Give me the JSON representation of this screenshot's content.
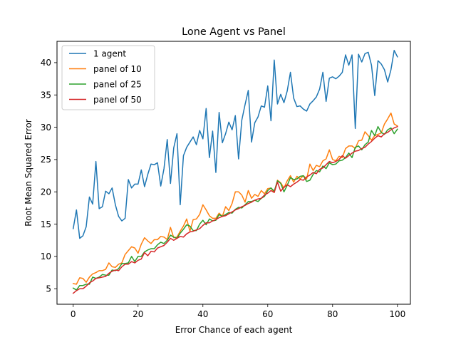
{
  "chart_data": {
    "type": "line",
    "title": "Lone Agent vs Panel",
    "xlabel": "Error Chance of each agent",
    "ylabel": "Root Mean Squared Error",
    "xlim": [
      -5,
      104
    ],
    "ylim": [
      2.6,
      43.3
    ],
    "xticks": [
      0,
      20,
      40,
      60,
      80,
      100
    ],
    "yticks": [
      5,
      10,
      15,
      20,
      25,
      30,
      35,
      40
    ],
    "legend_position": "top-left",
    "grid": false,
    "series": [
      {
        "name": "1 agent",
        "color": "#1f77b4",
        "values": [
          14.3,
          17.2,
          12.8,
          13.2,
          14.6,
          19.2,
          18.1,
          24.7,
          17.4,
          17.7,
          20.1,
          19.7,
          20.6,
          18.0,
          16.2,
          15.5,
          15.9,
          21.9,
          20.6,
          21.2,
          21.2,
          23.4,
          20.8,
          22.7,
          24.3,
          24.2,
          24.5,
          20.9,
          23.6,
          28.1,
          21.3,
          26.8,
          29.0,
          18.0,
          25.6,
          26.9,
          27.7,
          28.5,
          27.3,
          29.5,
          28.2,
          32.9,
          25.3,
          29.4,
          23.0,
          32.3,
          27.6,
          29.0,
          30.8,
          29.6,
          31.8,
          25.1,
          31.1,
          33.5,
          35.7,
          27.7,
          30.7,
          31.6,
          33.3,
          33.1,
          36.4,
          31.0,
          40.4,
          33.6,
          35.1,
          33.8,
          35.6,
          38.5,
          34.5,
          33.2,
          33.3,
          32.8,
          32.5,
          33.6,
          34.1,
          34.7,
          35.9,
          38.5,
          34.0,
          37.6,
          37.8,
          37.5,
          37.9,
          38.5,
          41.2,
          39.6,
          41.2,
          29.8,
          41.3,
          40.1,
          41.4,
          41.6,
          39.6,
          34.9,
          40.3,
          39.8,
          38.9,
          37.0,
          38.9,
          41.9,
          40.9
        ]
      },
      {
        "name": "panel of 10",
        "color": "#ff7f0e",
        "values": [
          5.8,
          5.7,
          6.7,
          6.6,
          6.0,
          6.8,
          7.3,
          7.5,
          7.8,
          7.8,
          8.0,
          9.0,
          8.4,
          8.3,
          8.8,
          9.0,
          10.3,
          10.9,
          11.5,
          11.3,
          10.5,
          11.9,
          12.9,
          12.4,
          12.0,
          12.6,
          12.6,
          13.1,
          13.0,
          12.6,
          14.5,
          12.9,
          13.0,
          13.9,
          14.7,
          15.8,
          13.9,
          15.7,
          15.8,
          16.5,
          18.0,
          17.2,
          16.3,
          15.9,
          15.9,
          16.7,
          16.2,
          17.7,
          17.1,
          18.2,
          20.0,
          20.0,
          19.5,
          18.4,
          20.2,
          19.0,
          19.6,
          19.3,
          20.2,
          19.7,
          20.5,
          20.6,
          19.9,
          21.8,
          21.4,
          20.6,
          21.7,
          22.5,
          21.5,
          22.4,
          22.0,
          22.5,
          22.0,
          24.3,
          23.3,
          24.1,
          23.9,
          24.8,
          25.1,
          26.5,
          25.0,
          24.8,
          25.5,
          25.3,
          26.7,
          27.1,
          27.1,
          26.7,
          27.9,
          28.0,
          29.3,
          28.7,
          28.0,
          28.7,
          28.9,
          29.1,
          30.5,
          31.3,
          32.2,
          30.5,
          30.2
        ]
      },
      {
        "name": "panel of 25",
        "color": "#2ca02c",
        "values": [
          5.1,
          4.8,
          5.5,
          5.5,
          5.7,
          5.7,
          6.8,
          6.6,
          6.8,
          7.2,
          7.1,
          7.1,
          7.9,
          7.8,
          8.1,
          8.9,
          8.9,
          9.0,
          10.0,
          9.2,
          10.0,
          10.0,
          10.7,
          11.0,
          11.2,
          11.2,
          11.8,
          12.2,
          12.0,
          12.5,
          13.3,
          13.0,
          12.8,
          13.6,
          14.2,
          14.9,
          14.7,
          14.0,
          14.0,
          15.0,
          15.6,
          14.9,
          15.8,
          15.5,
          15.6,
          16.5,
          16.2,
          16.5,
          16.8,
          16.7,
          17.3,
          17.6,
          17.5,
          18.0,
          18.5,
          18.5,
          18.7,
          18.5,
          19.0,
          19.3,
          20.2,
          20.6,
          20.1,
          21.7,
          21.3,
          20.0,
          21.0,
          22.2,
          21.9,
          22.0,
          22.4,
          22.5,
          21.6,
          21.8,
          22.7,
          23.3,
          23.1,
          24.0,
          23.6,
          24.5,
          24.2,
          24.3,
          24.8,
          24.9,
          25.3,
          26.0,
          25.3,
          26.9,
          27.1,
          26.5,
          27.3,
          27.7,
          29.5,
          28.7,
          30.1,
          29.2,
          28.9,
          29.6,
          29.9,
          29.0,
          29.7
        ]
      },
      {
        "name": "panel of 50",
        "color": "#d62728",
        "values": [
          4.3,
          4.7,
          5.0,
          5.0,
          5.4,
          5.9,
          6.2,
          6.6,
          6.7,
          6.8,
          6.9,
          7.4,
          7.7,
          7.9,
          7.8,
          8.4,
          8.8,
          8.8,
          9.2,
          9.0,
          9.4,
          9.6,
          10.6,
          10.1,
          10.8,
          10.7,
          11.3,
          11.5,
          11.7,
          12.2,
          12.8,
          12.5,
          12.8,
          13.1,
          13.0,
          13.5,
          13.8,
          13.9,
          14.1,
          14.3,
          14.8,
          15.2,
          15.2,
          15.5,
          15.7,
          16.0,
          16.2,
          16.3,
          16.6,
          16.9,
          17.2,
          17.4,
          17.7,
          17.9,
          18.2,
          18.4,
          18.7,
          18.9,
          19.0,
          19.5,
          19.8,
          20.2,
          19.9,
          21.5,
          20.1,
          20.7,
          21.1,
          20.8,
          21.2,
          21.5,
          21.9,
          21.8,
          22.3,
          22.6,
          23.0,
          22.8,
          23.5,
          23.7,
          24.2,
          24.7,
          24.5,
          24.7,
          25.0,
          25.6,
          25.2,
          25.6,
          26.0,
          26.3,
          26.4,
          26.7,
          26.9,
          27.4,
          27.8,
          28.3,
          28.7,
          28.5,
          29.0,
          29.2,
          29.6,
          29.9,
          30.1
        ]
      }
    ]
  }
}
